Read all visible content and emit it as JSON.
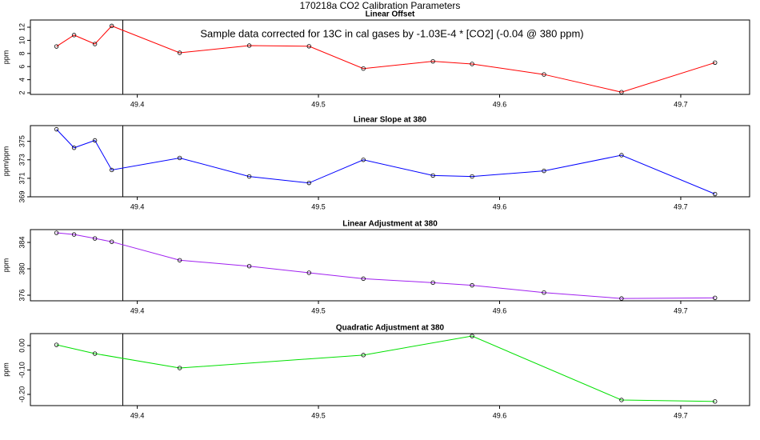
{
  "title": "170218a   CO2 Calibration Parameters",
  "chart_data": [
    {
      "type": "line",
      "title": "Linear Offset",
      "ylabel": "ppm",
      "annotation": "Sample data corrected for 13C in cal gases by -1.03E-4 * [CO2] (-0.04 @ 380 ppm)",
      "color": "#ff0000",
      "x": [
        49.3554,
        49.3651,
        49.3766,
        49.3859,
        49.4234,
        49.4618,
        49.4948,
        49.5248,
        49.5632,
        49.5848,
        49.6245,
        49.6673,
        49.7189
      ],
      "values": [
        9.07,
        10.8,
        9.44,
        12.2,
        8.1,
        9.2,
        9.1,
        5.7,
        6.8,
        6.4,
        4.8,
        2.1,
        6.6
      ],
      "xlim": [
        49.341,
        49.738
      ],
      "xticks": [
        49.4,
        49.5,
        49.6,
        49.7
      ],
      "ylim": [
        1.76,
        13.1
      ],
      "yticks": [
        2,
        4,
        6,
        8,
        10,
        12
      ],
      "vline": 49.392
    },
    {
      "type": "line",
      "title": "Linear Slope at 380",
      "ylabel": "ppm/ppm",
      "color": "#0000ff",
      "x": [
        49.3554,
        49.3651,
        49.3766,
        49.3859,
        49.4234,
        49.4618,
        49.4948,
        49.5248,
        49.5632,
        49.5848,
        49.6245,
        49.6673,
        49.7189
      ],
      "values": [
        376.3,
        374.3,
        375.1,
        371.9,
        373.2,
        371.2,
        370.5,
        373.0,
        371.3,
        371.2,
        371.8,
        373.5,
        369.3
      ],
      "xlim": [
        49.341,
        49.738
      ],
      "xticks": [
        49.4,
        49.5,
        49.6,
        49.7
      ],
      "ylim": [
        369,
        376.7
      ],
      "yticks": [
        369,
        371,
        373,
        375
      ],
      "vline": 49.392
    },
    {
      "type": "line",
      "title": "Linear Adjustment at 380",
      "ylabel": "ppm",
      "color": "#a020f0",
      "x": [
        49.3554,
        49.3651,
        49.3766,
        49.3859,
        49.4234,
        49.4618,
        49.4948,
        49.5248,
        49.5632,
        49.5848,
        49.6245,
        49.6673,
        49.7189
      ],
      "values": [
        385.45,
        385.2,
        384.6,
        384.1,
        381.3,
        380.4,
        379.4,
        378.5,
        377.9,
        377.5,
        376.4,
        375.5,
        375.6
      ],
      "xlim": [
        49.341,
        49.738
      ],
      "xticks": [
        49.4,
        49.5,
        49.6,
        49.7
      ],
      "ylim": [
        375.15,
        385.94
      ],
      "yticks": [
        376,
        380,
        384
      ],
      "vline": 49.392
    },
    {
      "type": "line",
      "title": "Quadratic Adjustment at 380",
      "ylabel": "ppm",
      "color": "#00e000",
      "x": [
        49.3554,
        49.3766,
        49.4234,
        49.5248,
        49.5848,
        49.6673,
        49.7189
      ],
      "values": [
        0.003,
        -0.033,
        -0.092,
        -0.039,
        0.039,
        -0.223,
        -0.229
      ],
      "xlim": [
        49.341,
        49.738
      ],
      "xticks": [
        49.4,
        49.5,
        49.6,
        49.7
      ],
      "ylim": [
        -0.246,
        0.049
      ],
      "yticks": [
        {
          "value": 0,
          "label": "0.00"
        },
        {
          "value": -0.1,
          "label": "-0.10"
        },
        {
          "value": -0.2,
          "label": "-0.20"
        }
      ],
      "vline": 49.392
    }
  ]
}
